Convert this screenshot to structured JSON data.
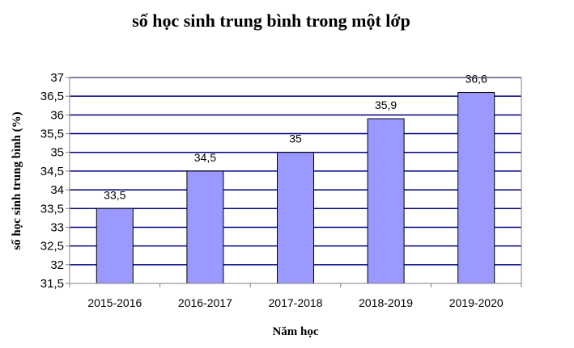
{
  "colors": {
    "bar_fill": "#9999ff",
    "bar_stroke": "#000000",
    "gridline": "#000080",
    "axis": "#808080",
    "background": "#ffffff"
  },
  "chart_data": {
    "type": "bar",
    "title": "số học sinh trung bình trong một lớp",
    "xlabel": "Năm học",
    "ylabel": "số học sinh trung bình (%)",
    "categories": [
      "2015-2016",
      "2016-2017",
      "2017-2018",
      "2018-2019",
      "2019-2020"
    ],
    "values": [
      33.5,
      34.5,
      35,
      35.9,
      36.6
    ],
    "data_labels": [
      "33,5",
      "34,5",
      "35",
      "35,9",
      "36,6"
    ],
    "ylim": [
      31.5,
      37
    ],
    "y_ticks": [
      31.5,
      32,
      32.5,
      33,
      33.5,
      34,
      34.5,
      35,
      35.5,
      36,
      36.5,
      37
    ],
    "y_tick_labels": [
      "31,5",
      "32",
      "32,5",
      "33",
      "33,5",
      "34",
      "34,5",
      "35",
      "35,5",
      "36",
      "36,5",
      "37"
    ],
    "grid": true,
    "legend": "none"
  }
}
